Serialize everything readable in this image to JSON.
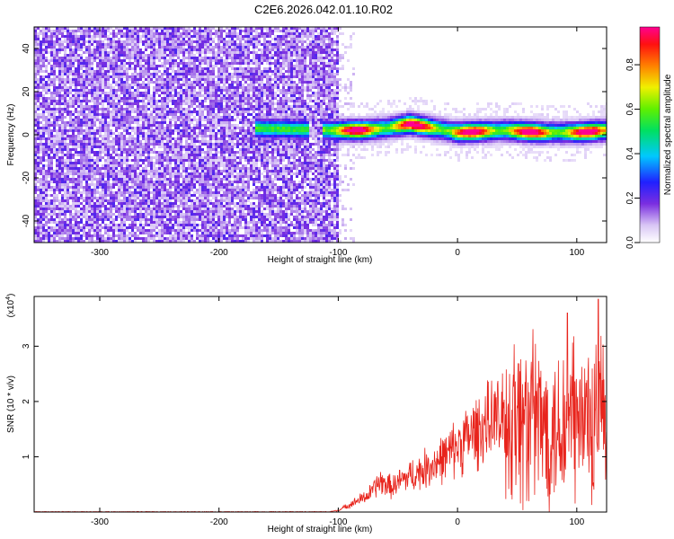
{
  "title": "C2E6.2026.042.01.10.R02",
  "colors": {
    "axis": "#000000",
    "snr_line": "#e8241c",
    "background": "#ffffff"
  },
  "chart_data": [
    {
      "type": "heatmap",
      "name": "spectrogram",
      "xlabel": "Height of straight line (km)",
      "ylabel": "Frequency (Hz)",
      "xlim": [
        -355,
        125
      ],
      "ylim": [
        -50,
        50
      ],
      "xticks": [
        -300,
        -200,
        -100,
        0,
        100
      ],
      "yticks": [
        -40,
        -20,
        0,
        20,
        40
      ],
      "colorbar": {
        "label": "Normalized spectral amplitude",
        "range": [
          0.0,
          0.97
        ],
        "ticks": [
          "0.0",
          "0.2",
          "0.4",
          "0.6",
          "0.8"
        ],
        "colormap": "white-purple-blue-cyan-green-yellow-red-magenta"
      },
      "features": {
        "noise_region_km": [
          -355,
          -100
        ],
        "noise_amplitude_typical": [
          0.05,
          0.3
        ],
        "signal_start_km": -170,
        "signal_gap_km": [
          -125,
          -112
        ],
        "signal_center_hz": [
          {
            "km": -170,
            "hz": 3
          },
          {
            "km": -100,
            "hz": 2
          },
          {
            "km": -80,
            "hz": 2
          },
          {
            "km": -60,
            "hz": 3
          },
          {
            "km": -40,
            "hz": 5
          },
          {
            "km": -20,
            "hz": 3
          },
          {
            "km": 0,
            "hz": 1
          },
          {
            "km": 40,
            "hz": 2
          },
          {
            "km": 70,
            "hz": 1
          },
          {
            "km": 100,
            "hz": 1
          },
          {
            "km": 125,
            "hz": 2
          }
        ],
        "signal_peak_amplitude": 0.95
      }
    },
    {
      "type": "line",
      "name": "snr",
      "xlabel": "Height of straight line (km)",
      "ylabel": "SNR (10 * v/v)",
      "yscale_label": "(x10",
      "yscale_exponent": "4",
      "yscale_close": ")",
      "xlim": [
        -355,
        125
      ],
      "ylim": [
        0,
        3.9
      ],
      "xticks": [
        -300,
        -200,
        -100,
        0,
        100
      ],
      "yticks": [
        1,
        2,
        3
      ],
      "envelope": [
        {
          "km": -355,
          "v": 0.0
        },
        {
          "km": -110,
          "v": 0.0
        },
        {
          "km": -100,
          "v": 0.03
        },
        {
          "km": -75,
          "v": 0.3
        },
        {
          "km": -65,
          "v": 0.55
        },
        {
          "km": -55,
          "v": 0.45
        },
        {
          "km": -45,
          "v": 0.6
        },
        {
          "km": -30,
          "v": 0.75
        },
        {
          "km": -10,
          "v": 1.0
        },
        {
          "km": 0,
          "v": 1.2
        },
        {
          "km": 15,
          "v": 1.45
        },
        {
          "km": 30,
          "v": 1.65
        },
        {
          "km": 50,
          "v": 1.7
        },
        {
          "km": 60,
          "v": 1.65
        },
        {
          "km": 75,
          "v": 1.55
        },
        {
          "km": 90,
          "v": 1.55
        },
        {
          "km": 110,
          "v": 1.6
        },
        {
          "km": 125,
          "v": 1.45
        }
      ],
      "peaks": [
        {
          "km": 92,
          "v": 3.6
        },
        {
          "km": 118,
          "v": 3.85
        }
      ]
    }
  ]
}
